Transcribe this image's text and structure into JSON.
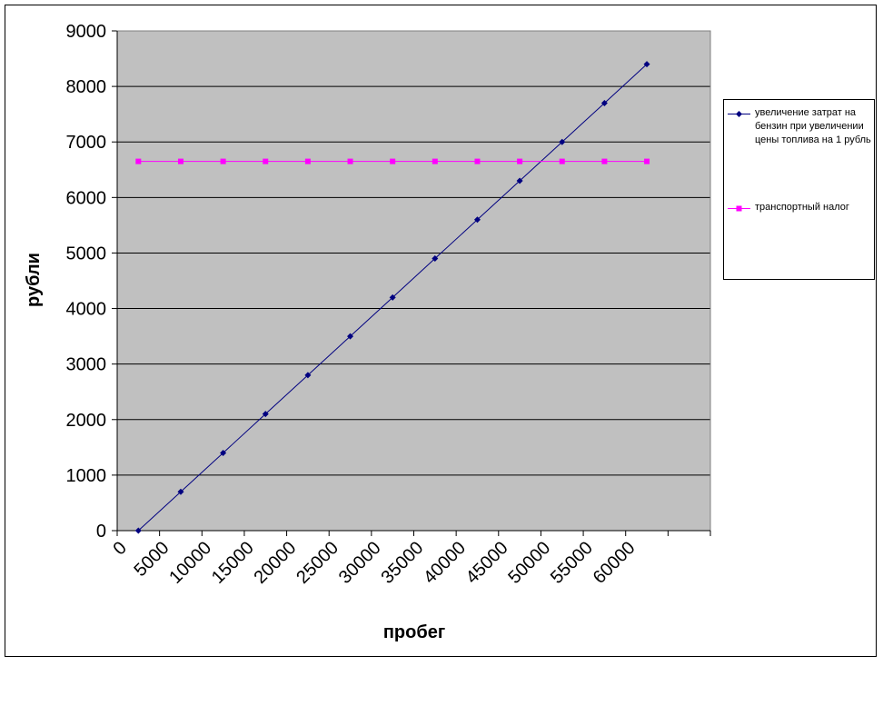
{
  "chart_data": {
    "type": "line",
    "x_label": "пробег",
    "y_label": "рубли",
    "categories": [
      "0",
      "5000",
      "10000",
      "15000",
      "20000",
      "25000",
      "30000",
      "35000",
      "40000",
      "45000",
      "50000",
      "55000",
      "60000",
      null
    ],
    "series": [
      {
        "name": "увеличение затрат на бензин при увеличении цены топлива на 1 рубль",
        "color": "#000080",
        "marker": "diamond",
        "values": [
          0,
          700,
          1400,
          2100,
          2800,
          3500,
          4200,
          4900,
          5600,
          6300,
          7000,
          7700,
          8400,
          null
        ]
      },
      {
        "name": "транспортный налог",
        "color": "#ff00ff",
        "marker": "square",
        "values": [
          6650,
          6650,
          6650,
          6650,
          6650,
          6650,
          6650,
          6650,
          6650,
          6650,
          6650,
          6650,
          6650,
          null
        ]
      }
    ],
    "ylim": [
      0,
      9000
    ],
    "yticks": [
      0,
      1000,
      2000,
      3000,
      4000,
      5000,
      6000,
      7000,
      8000,
      9000
    ],
    "grid": true,
    "plot_background": "#c0c0c0",
    "legend": "right"
  }
}
